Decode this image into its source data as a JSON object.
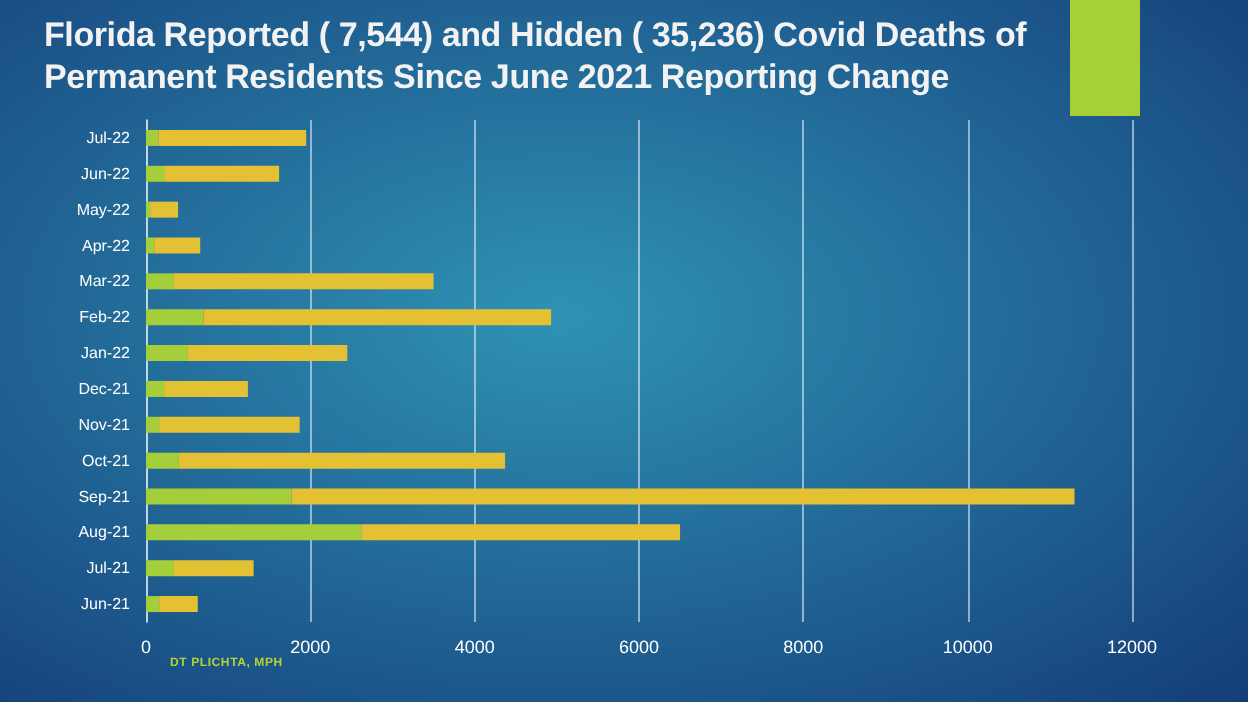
{
  "chart_data": {
    "type": "bar",
    "orientation": "horizontal",
    "stacked": true,
    "title": "Florida Reported ( 7,544) and Hidden ( 35,236) Covid Deaths of Permanent Residents Since June 2021 Reporting Change",
    "categories": [
      "Jul-22",
      "Jun-22",
      "May-22",
      "Apr-22",
      "Mar-22",
      "Feb-22",
      "Jan-22",
      "Dec-21",
      "Nov-21",
      "Oct-21",
      "Sep-21",
      "Aug-21",
      "Jul-21",
      "Jun-21"
    ],
    "series": [
      {
        "color": "#a4cf3a",
        "values": [
          150,
          220,
          50,
          100,
          340,
          700,
          510,
          220,
          160,
          400,
          1770,
          2620,
          340,
          160
        ]
      },
      {
        "color": "#e4c033",
        "values": [
          1800,
          1400,
          340,
          560,
          3160,
          4230,
          1940,
          1020,
          1710,
          3970,
          9530,
          3880,
          970,
          470
        ]
      }
    ],
    "xlim": [
      0,
      12000
    ],
    "xticks": [
      0,
      2000,
      4000,
      6000,
      8000,
      10000,
      12000
    ],
    "grid": "x",
    "annotations": [
      "DT PLICHTA, MPH"
    ]
  }
}
